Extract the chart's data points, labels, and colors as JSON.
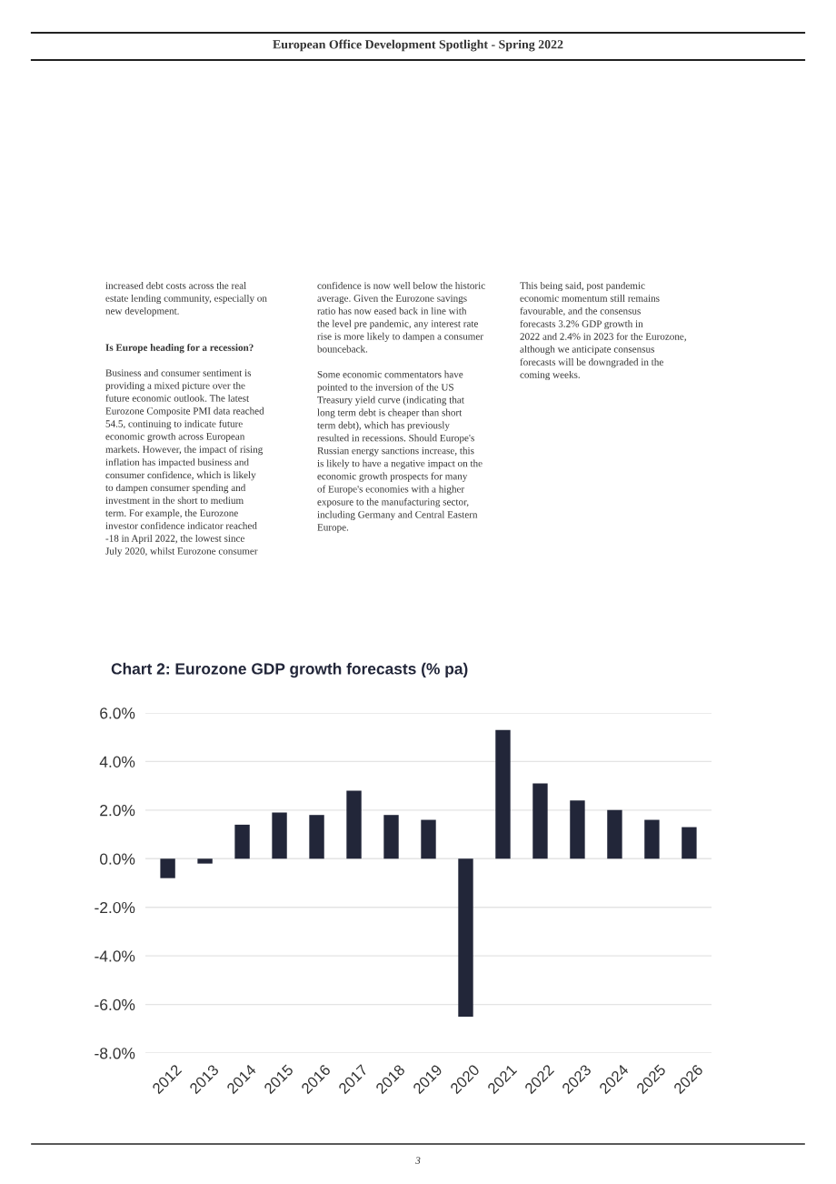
{
  "chart_data": {
    "type": "bar",
    "title": "Chart 2: Eurozone GDP growth forecasts (% pa)",
    "categories": [
      "2012",
      "2013",
      "2014",
      "2015",
      "2016",
      "2017",
      "2018",
      "2019",
      "2020",
      "2021",
      "2022",
      "2023",
      "2024",
      "2025",
      "2026"
    ],
    "values": [
      -0.8,
      -0.2,
      1.4,
      1.9,
      1.8,
      2.8,
      1.8,
      1.6,
      -6.5,
      5.3,
      3.1,
      2.4,
      2.0,
      1.6,
      1.3
    ],
    "color": "#222639",
    "ylim": [
      -8,
      6
    ],
    "yticks": [
      {
        "value": -8,
        "label": "-8.0%"
      },
      {
        "value": -6,
        "label": "-6.0%"
      },
      {
        "value": -4,
        "label": "-4.0%"
      },
      {
        "value": -2,
        "label": "-2.0%"
      },
      {
        "value": 0,
        "label": "0.0%"
      },
      {
        "value": 2,
        "label": "2.0%"
      },
      {
        "value": 4,
        "label": "4.0%"
      },
      {
        "value": 6,
        "label": "6.0%"
      }
    ],
    "grid": "y",
    "annotations": [
      "European Office Development Spotlight - Spring 2022",
      "increased debt costs across the real\nestate lending community, especially on\nnew development.",
      "Is Europe heading for a recession?",
      "Business and consumer sentiment is\nproviding a mixed picture over the\nfuture economic outlook. The latest\nEurozone Composite PMI data reached\n54.5, continuing to indicate future\neconomic growth across European\nmarkets. However, the impact of rising\ninflation has impacted business and\nconsumer confidence, which is likely\nto dampen consumer spending and\ninvestment in the short to medium\nterm. For example, the Eurozone\ninvestor confidence indicator reached\n-18 in April 2022, the lowest since\nJuly 2020, whilst Eurozone consumer",
      "confidence is now well below the historic\naverage. Given the Eurozone savings\nratio has now eased back in line with\nthe level pre pandemic, any interest rate\nrise is more likely to dampen a consumer\nbounceback.\n\nSome economic commentators have\npointed to the inversion of the US\nTreasury yield curve (indicating that\nlong term debt is cheaper than short\nterm debt), which has previously\nresulted in recessions. Should Europe's\nRussian energy sanctions increase, this\nis likely to have a negative impact on the\neconomic growth prospects for many\nof Europe's economies with a higher\nexposure to the manufacturing sector,\nincluding Germany and Central Eastern\nEurope.",
      "This being said, post pandemic\neconomic momentum still remains\nfavourable, and the consensus\nforecasts 3.2% GDP growth in\n2022 and 2.4% in 2023 for the Eurozone,\nalthough we anticipate consensus\nforecasts will be downgraded in the\ncoming weeks.",
      "3"
    ]
  }
}
